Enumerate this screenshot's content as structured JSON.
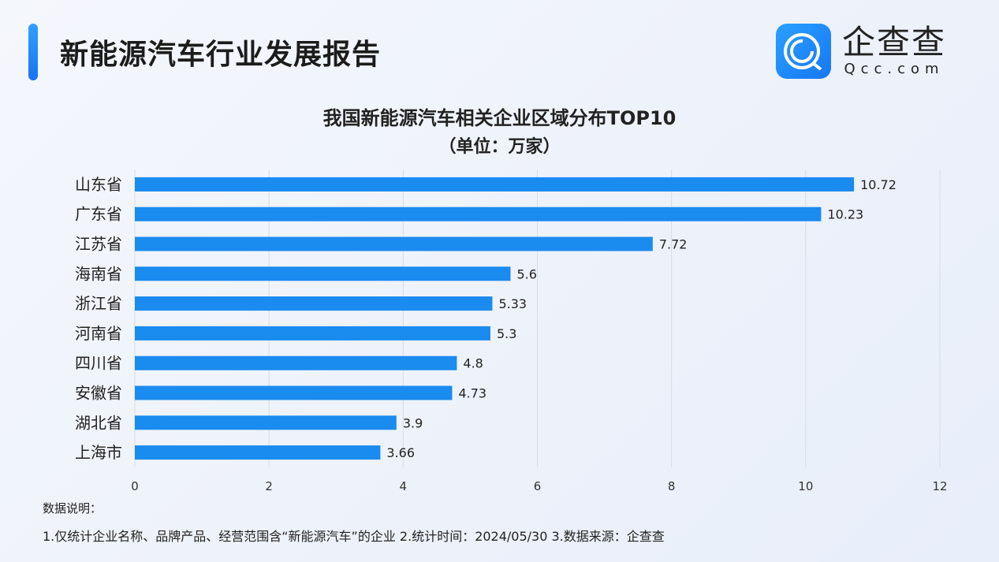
{
  "header": {
    "title": "新能源汽车行业发展报告"
  },
  "logo": {
    "cn": "企查查",
    "en": "Qcc.com",
    "color": "#1a7df5"
  },
  "chart_data": {
    "type": "bar",
    "orientation": "horizontal",
    "title": "我国新能源汽车相关企业区域分布TOP10",
    "subtitle": "（单位：万家）",
    "categories": [
      "山东省",
      "广东省",
      "江苏省",
      "海南省",
      "浙江省",
      "河南省",
      "四川省",
      "安徽省",
      "湖北省",
      "上海市"
    ],
    "values": [
      10.72,
      10.23,
      7.72,
      5.6,
      5.33,
      5.3,
      4.8,
      4.73,
      3.9,
      3.66
    ],
    "value_labels": [
      "10.72",
      "10.23",
      "7.72",
      "5.6",
      "5.33",
      "5.3",
      "4.8",
      "4.73",
      "3.9",
      "3.66"
    ],
    "xlim": [
      0,
      12
    ],
    "xticks": [
      "0",
      "2",
      "4",
      "6",
      "8",
      "10",
      "12"
    ],
    "grid": true,
    "bar_color": "#1a8bef"
  },
  "notes": {
    "heading": "数据说明：",
    "text": "1.仅统计企业名称、品牌产品、经营范围含“新能源汽车”的企业   2.统计时间：2024/05/30    3.数据来源：企查查"
  }
}
